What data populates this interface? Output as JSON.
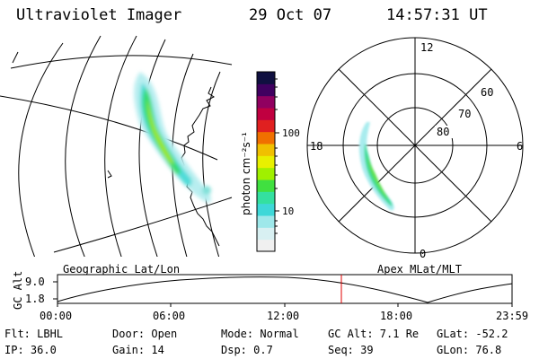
{
  "header": {
    "title": "Ultraviolet Imager",
    "date": "29 Oct 07",
    "time": "14:57:31 UT"
  },
  "geo_panel": {
    "label": "Geographic Lat/Lon"
  },
  "polar_panel": {
    "label": "Apex MLat/MLT",
    "mlt_labels": [
      "12",
      "18",
      "6",
      "0"
    ],
    "mlat_labels": [
      "60",
      "70",
      "80"
    ]
  },
  "colorbar": {
    "unit_label": "photon cm⁻²s⁻¹",
    "ticks": [
      "100",
      "10"
    ],
    "colors": [
      "#f0f0f0",
      "#d8f0f2",
      "#9ee8ea",
      "#3ed8d8",
      "#34e0a0",
      "#40e040",
      "#a0f000",
      "#e8f000",
      "#f0c000",
      "#f07000",
      "#e02020",
      "#c00040",
      "#900060",
      "#400060",
      "#101040"
    ]
  },
  "timeline": {
    "y_label": "GC Alt",
    "y_ticks": [
      "9.0",
      "1.8"
    ],
    "x_ticks": [
      "00:00",
      "06:00",
      "12:00",
      "18:00",
      "23:59"
    ],
    "marker_time": "14:57"
  },
  "footer": [
    [
      "Flt: LBHL",
      "Door: Open",
      "Mode: Normal",
      "GC Alt: 7.1 Re",
      "GLat: -52.2"
    ],
    [
      "IP: 36.0",
      "Gain: 14",
      "Dsp:    0.7",
      "Seq: 39",
      "GLon:  76.8"
    ]
  ]
}
